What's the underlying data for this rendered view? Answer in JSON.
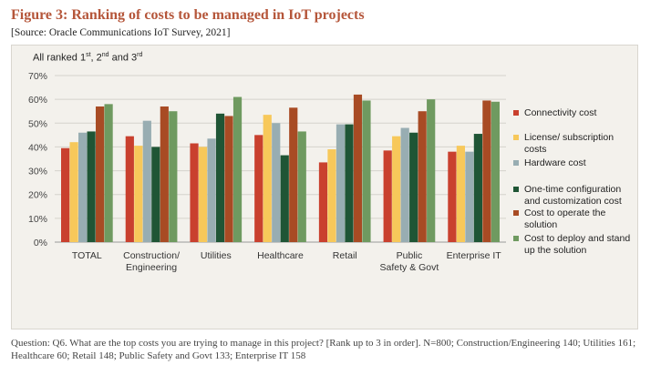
{
  "title": "Figure 3: Ranking of costs to be managed in IoT projects",
  "source": "[Source: Oracle Communications IoT Survey, 2021]",
  "subtitle": {
    "prefix": "All ranked 1",
    "sup1": "st",
    "mid1": ", 2",
    "sup2": "nd",
    "mid2": " and 3",
    "sup3": "rd"
  },
  "footnote": "Question: Q6. What are the top costs you are trying to manage in this project? [Rank up to 3 in order]. N=800; Construction/Engineering 140; Utilities 161; Healthcare 60; Retail 148; Public Safety and Govt 133; Enterprise IT 158",
  "chart_data": {
    "type": "bar",
    "title": "All ranked 1st, 2nd and 3rd",
    "xlabel": "",
    "ylabel": "",
    "ylim": [
      0,
      70
    ],
    "yticks": [
      "0%",
      "10%",
      "20%",
      "30%",
      "40%",
      "50%",
      "60%",
      "70%"
    ],
    "grid": true,
    "legend_position": "right",
    "categories": [
      "TOTAL",
      [
        "Construction/",
        "Engineering"
      ],
      "Utilities",
      "Healthcare",
      "Retail",
      [
        "Public",
        "Safety & Govt"
      ],
      "Enterprise IT"
    ],
    "series": [
      {
        "name": [
          "Connectivity cost"
        ],
        "color": "#c9402e",
        "values": [
          39.5,
          44.5,
          41.5,
          45,
          33.5,
          38.5,
          38
        ]
      },
      {
        "name": [
          "License/ subscription",
          "costs"
        ],
        "color": "#f7c85a",
        "values": [
          42,
          40.5,
          40,
          53.5,
          39,
          44.5,
          40.5
        ]
      },
      {
        "name": [
          "Hardware cost"
        ],
        "color": "#98adb2",
        "values": [
          46,
          51,
          43.5,
          50,
          49.5,
          48,
          38
        ]
      },
      {
        "name": [
          "One-time configuration",
          "and customization cost"
        ],
        "color": "#1f5535",
        "values": [
          46.5,
          40,
          54,
          36.5,
          49.5,
          46,
          45.5
        ]
      },
      {
        "name": [
          "Cost to operate the",
          "solution"
        ],
        "color": "#a84b24",
        "values": [
          57,
          57,
          53,
          56.5,
          62,
          55,
          59.5
        ]
      },
      {
        "name": [
          "Cost to deploy and stand",
          "up the solution"
        ],
        "color": "#6f9a60",
        "values": [
          58,
          55,
          61,
          46.5,
          59.5,
          60,
          59
        ]
      }
    ]
  }
}
